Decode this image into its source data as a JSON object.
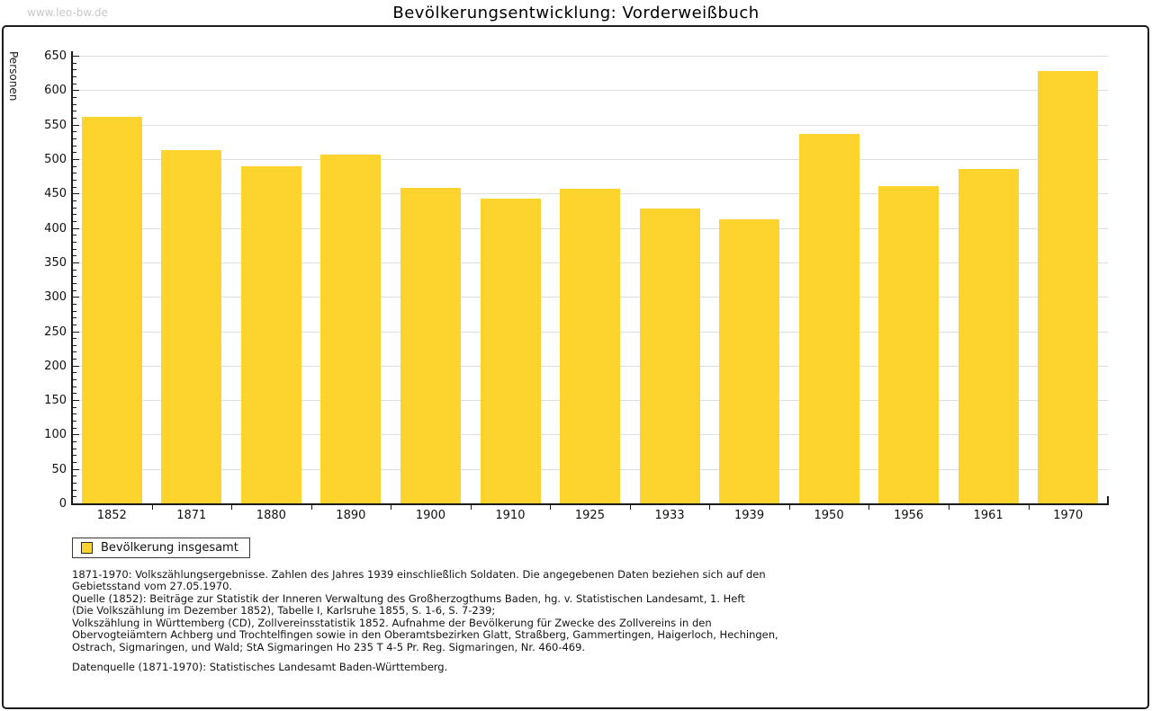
{
  "watermark": "www.leo-bw.de",
  "header": {
    "title": "Bevölkerungsentwicklung: Vorderweißbuch"
  },
  "chart_data": {
    "type": "bar",
    "title": "Bevölkerungsentwicklung: Vorderweißbuch",
    "xlabel": "",
    "ylabel": "Personen",
    "ylim": [
      0,
      650
    ],
    "ytick_step": 50,
    "ytick_minor_step": 10,
    "grid": true,
    "legend_position": "bottom-left",
    "bar_color": "#fdd32e",
    "categories": [
      "1852",
      "1871",
      "1880",
      "1890",
      "1900",
      "1910",
      "1925",
      "1933",
      "1939",
      "1950",
      "1956",
      "1961",
      "1970"
    ],
    "series": [
      {
        "name": "Bevölkerung insgesamt",
        "values": [
          561,
          513,
          489,
          506,
          458,
          442,
          457,
          428,
          413,
          536,
          461,
          485,
          628
        ]
      }
    ]
  },
  "legend": {
    "label": "Bevölkerung insgesamt",
    "swatch_color": "#fdd32e"
  },
  "footer": {
    "para1": [
      "1871-1970: Volkszählungsergebnisse. Zahlen des Jahres 1939 einschließlich Soldaten. Die angegebenen Daten beziehen sich auf den",
      "Gebietsstand vom 27.05.1970."
    ],
    "para2": [
      "Quelle (1852): Beiträge zur Statistik der Inneren Verwaltung des Großherzogthums Baden, hg. v. Statistischen Landesamt, 1. Heft",
      "(Die Volkszählung im Dezember 1852), Tabelle I, Karlsruhe 1855, S. 1-6, S. 7-239;",
      "Volkszählung in Württemberg (CD), Zollvereinsstatistik 1852. Aufnahme der Bevölkerung für Zwecke des Zollvereins in den",
      "Obervogteiämtern Achberg und Trochtelfingen sowie in den Oberamtsbezirken Glatt, Straßberg, Gammertingen, Haigerloch, Hechingen,",
      "Ostrach, Sigmaringen, und Wald; StA Sigmaringen Ho 235 T 4-5 Pr. Reg. Sigmaringen, Nr. 460-469."
    ],
    "para3": [
      "Datenquelle (1871-1970): Statistisches Landesamt Baden-Württemberg."
    ]
  },
  "colors": {
    "bar": "#fdd32e",
    "gridline": "#dedede",
    "axis": "#1a1a1a",
    "watermark": "#c9c9c9"
  }
}
